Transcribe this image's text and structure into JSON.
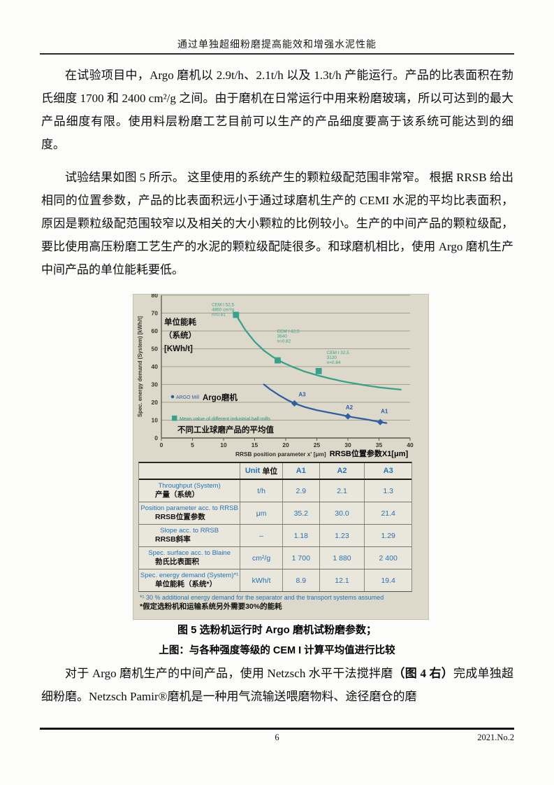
{
  "document": {
    "header_title": "通过单独超细粉磨提高能效和增强水泥性能",
    "paragraphs": {
      "p1": "在试验项目中，Argo 磨机以 2.9t/h、2.1t/h 以及 1.3t/h 产能运行。产品的比表面积在勃氏细度 1700 和 2400 cm²/g 之间。由于磨机在日常运行中用来粉磨玻璃，所以可达到的最大产品细度有限。使用料层粉磨工艺目前可以生产的产品细度要高于该系统可能达到的细度。",
      "p2": "试验结果如图 5 所示。 这里使用的系统产生的颗粒级配范围非常窄。 根据 RRSB 给出相同的位置参数，产品的比表面积远小于通过球磨机生产的 CEMI 水泥的平均比表面积，原因是颗粒级配范围较窄以及相关的大小颗粒的比例较小。生产的中间产品的颗粒级配，要比使用高压粉磨工艺生产的水泥的颗粒级配陡很多。和球磨机相比，使用 Argo 磨机生产中间产品的单位能耗要低。",
      "p3_pre": "对于 Argo 磨机生产的中间产品，使用 Netzsch 水平干法搅拌磨",
      "p3_bold": "（图 4 右）",
      "p3_post": "完成单独超细粉磨。Netzsch Pamir®磨机是一种用气流输送喂磨物料、途径磨仓的磨"
    },
    "figure_caption_1": "图 5 选粉机运行时 Argo 磨机试粉磨参数；",
    "figure_caption_2": "上图：与各种强度等级的 CEM I 计算平均值进行比较",
    "footer": {
      "page_number": "6",
      "issue": "2021.No.2"
    }
  },
  "chart_data": {
    "type": "scatter",
    "xlabel_en": "RRSB position parameter x' [μm]",
    "xlabel_zh": "RRSB位置参数X1[μm]",
    "ylabel": "Spec. energy demand (System) [kWh/t]",
    "ylabel_overlay_zh": [
      "单位能耗",
      "（系统）",
      "[KWh/t]"
    ],
    "xlim": [
      0,
      40
    ],
    "ylim": [
      0,
      80
    ],
    "xticks": [
      0,
      5,
      10,
      15,
      20,
      25,
      30,
      35,
      40
    ],
    "yticks": [
      0,
      10,
      20,
      30,
      40,
      50,
      60,
      70,
      80
    ],
    "grid": "horizontal",
    "legend_position": "inside-left",
    "series": [
      {
        "name": "ARGO Mill",
        "name_zh": "Argo磨机",
        "color": "#2d5fa5",
        "marker": "diamond",
        "points": [
          {
            "x": 21.4,
            "y": 19.4,
            "label": "A3",
            "label_dx": 11,
            "label_dy": -10
          },
          {
            "x": 30.0,
            "y": 12.1,
            "label": "A2",
            "label_dx": 2,
            "label_dy": -10
          },
          {
            "x": 35.2,
            "y": 8.9,
            "label": "A1",
            "label_dx": 6,
            "label_dy": -13
          }
        ],
        "trend": [
          [
            16.5,
            30
          ],
          [
            17.5,
            27.2
          ],
          [
            19,
            23.8
          ],
          [
            20.2,
            21.4
          ],
          [
            21.4,
            19.4
          ],
          [
            23,
            17.4
          ],
          [
            25,
            15.6
          ],
          [
            27,
            14.2
          ],
          [
            29,
            12.9
          ],
          [
            30,
            12.1
          ],
          [
            31.5,
            11.2
          ],
          [
            33,
            10.4
          ],
          [
            34.2,
            9.6
          ],
          [
            35.2,
            8.9
          ],
          [
            36.2,
            8.4
          ]
        ]
      },
      {
        "name": "Mean value of different industrial ball mills",
        "name_zh": "不同工业球磨产品的平均值",
        "color": "#36a28b",
        "marker": "square",
        "points": [
          {
            "x": 12.0,
            "y": 69.0,
            "annotation": [
              "CEM I 52,5",
              "4860 cm²/g",
              "n=0.81"
            ],
            "ann_x": 8.1,
            "ann_y": 74
          },
          {
            "x": 18.7,
            "y": 43.5,
            "annotation": [
              "CEM I 42,5",
              "3640",
              "n=0.82"
            ],
            "ann_x": 18.6,
            "ann_y": 59
          },
          {
            "x": 25.3,
            "y": 37.5,
            "annotation": [
              "CEM I 32,5",
              "3120",
              "n=0.84"
            ],
            "ann_x": 26.6,
            "ann_y": 47
          }
        ],
        "trend": [
          [
            12,
            69
          ],
          [
            13.5,
            60.5
          ],
          [
            15,
            54
          ],
          [
            16.5,
            49
          ],
          [
            18,
            45.3
          ],
          [
            19.5,
            42.3
          ],
          [
            21,
            40
          ],
          [
            23,
            37.3
          ],
          [
            25,
            35.2
          ],
          [
            27,
            33.4
          ],
          [
            29,
            31.9
          ],
          [
            31,
            30.6
          ],
          [
            33,
            29.4
          ],
          [
            35,
            28.4
          ],
          [
            36.8,
            27.7
          ],
          [
            38.5,
            27.1
          ]
        ]
      }
    ]
  },
  "table": {
    "header": {
      "unit_en": "Unit",
      "unit_zh": "单位",
      "cols": [
        "A1",
        "A2",
        "A3"
      ]
    },
    "rows": [
      {
        "label_en": "Throughput (System)",
        "label_zh": "产量（系统）",
        "unit": "t/h",
        "values": [
          "2.9",
          "2.1",
          "1.3"
        ]
      },
      {
        "label_en": "Position parameter acc. to RRSB",
        "label_zh": "RRSB位置参数",
        "unit": "μm",
        "values": [
          "35.2",
          "30.0",
          "21.4"
        ]
      },
      {
        "label_en": "Slope acc. to RRSB",
        "label_zh": "RRSB斜率",
        "unit": "–",
        "values": [
          "1.18",
          "1.23",
          "1.29"
        ]
      },
      {
        "label_en": "Spec. surface acc. to Blaine",
        "label_zh": "勃氏比表面积",
        "unit": "cm²/g",
        "values": [
          "1 700",
          "1 880",
          "2 400"
        ]
      },
      {
        "label_en": "Spec. energy demand (System)*¹",
        "label_zh": "单位能耗（系统*）",
        "unit": "kWh/t",
        "values": [
          "8.9",
          "12.1",
          "19.4"
        ]
      }
    ],
    "footnote_en": "*¹ 30 % additional energy demand for the separator and the transport systems assumed",
    "footnote_zh": "*假定选粉机和运输系统另外需要30%的能耗"
  },
  "colors": {
    "argo_blue": "#2d5fa5",
    "ballmill_green": "#36a28b",
    "table_blue": "#2472b8",
    "figure_bg": "#dcd9ca",
    "table_bg": "#e9e7db"
  }
}
